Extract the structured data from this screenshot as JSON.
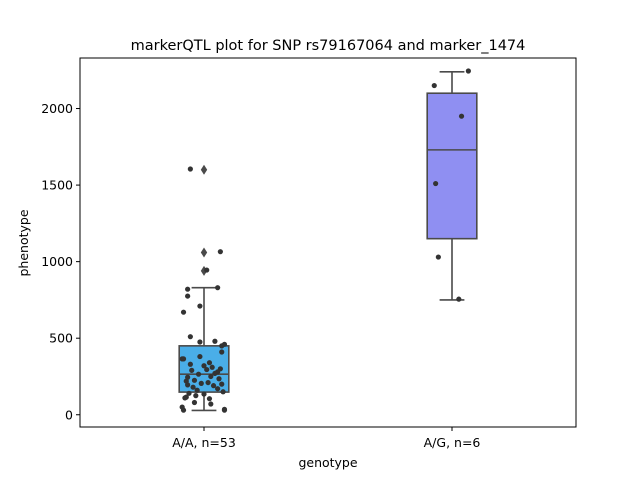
{
  "chart_data": {
    "type": "box",
    "title": "markerQTL plot for SNP rs79167064 and marker_1474",
    "xlabel": "genotype",
    "ylabel": "phenotype",
    "ylim": [
      -80,
      2330
    ],
    "yticks": [
      0,
      500,
      1000,
      1500,
      2000
    ],
    "grid": false,
    "categories": [
      "A/A, n=53",
      "A/G, n=6"
    ],
    "boxes": [
      {
        "category": "A/A, n=53",
        "color": "#4aaee8",
        "q1": 148,
        "median": 265,
        "q3": 450,
        "whisker_low": 28,
        "whisker_high": 830,
        "outliers": [
          940,
          1060,
          1600
        ],
        "points": [
          {
            "dx": -0.1,
            "y": 1605
          },
          {
            "dx": 0.12,
            "y": 1065
          },
          {
            "dx": 0.02,
            "y": 945
          },
          {
            "dx": 0.1,
            "y": 830
          },
          {
            "dx": -0.12,
            "y": 820
          },
          {
            "dx": -0.12,
            "y": 775
          },
          {
            "dx": -0.03,
            "y": 710
          },
          {
            "dx": -0.15,
            "y": 670
          },
          {
            "dx": -0.1,
            "y": 510
          },
          {
            "dx": 0.08,
            "y": 480
          },
          {
            "dx": -0.03,
            "y": 475
          },
          {
            "dx": 0.15,
            "y": 460
          },
          {
            "dx": 0.13,
            "y": 450
          },
          {
            "dx": 0.13,
            "y": 410
          },
          {
            "dx": -0.03,
            "y": 380
          },
          {
            "dx": -0.16,
            "y": 365
          },
          {
            "dx": -0.15,
            "y": 365
          },
          {
            "dx": 0.04,
            "y": 340
          },
          {
            "dx": -0.1,
            "y": 330
          },
          {
            "dx": 0.0,
            "y": 320
          },
          {
            "dx": 0.06,
            "y": 310
          },
          {
            "dx": 0.12,
            "y": 300
          },
          {
            "dx": 0.02,
            "y": 295
          },
          {
            "dx": -0.09,
            "y": 290
          },
          {
            "dx": 0.1,
            "y": 280
          },
          {
            "dx": 0.08,
            "y": 270
          },
          {
            "dx": -0.04,
            "y": 265
          },
          {
            "dx": 0.05,
            "y": 250
          },
          {
            "dx": -0.12,
            "y": 245
          },
          {
            "dx": 0.11,
            "y": 235
          },
          {
            "dx": -0.07,
            "y": 225
          },
          {
            "dx": -0.13,
            "y": 220
          },
          {
            "dx": 0.03,
            "y": 210
          },
          {
            "dx": -0.02,
            "y": 205
          },
          {
            "dx": 0.13,
            "y": 200
          },
          {
            "dx": -0.12,
            "y": 195
          },
          {
            "dx": 0.07,
            "y": 190
          },
          {
            "dx": -0.08,
            "y": 180
          },
          {
            "dx": 0.1,
            "y": 170
          },
          {
            "dx": -0.05,
            "y": 160
          },
          {
            "dx": 0.14,
            "y": 150
          },
          {
            "dx": -0.11,
            "y": 140
          },
          {
            "dx": 0.0,
            "y": 135
          },
          {
            "dx": -0.06,
            "y": 125
          },
          {
            "dx": -0.13,
            "y": 115
          },
          {
            "dx": -0.14,
            "y": 110
          },
          {
            "dx": 0.04,
            "y": 105
          },
          {
            "dx": -0.07,
            "y": 80
          },
          {
            "dx": 0.05,
            "y": 70
          },
          {
            "dx": -0.16,
            "y": 50
          },
          {
            "dx": -0.15,
            "y": 30
          },
          {
            "dx": 0.15,
            "y": 35
          },
          {
            "dx": 0.15,
            "y": 30
          }
        ]
      },
      {
        "category": "A/G, n=6",
        "color": "#8f8ff2",
        "q1": 1150,
        "median": 1730,
        "q3": 2100,
        "whisker_low": 750,
        "whisker_high": 2240,
        "outliers": [],
        "points": [
          {
            "dx": -0.13,
            "y": 2150
          },
          {
            "dx": 0.12,
            "y": 2245
          },
          {
            "dx": 0.07,
            "y": 1950
          },
          {
            "dx": -0.12,
            "y": 1510
          },
          {
            "dx": -0.1,
            "y": 1030
          },
          {
            "dx": 0.05,
            "y": 755
          }
        ]
      }
    ]
  }
}
